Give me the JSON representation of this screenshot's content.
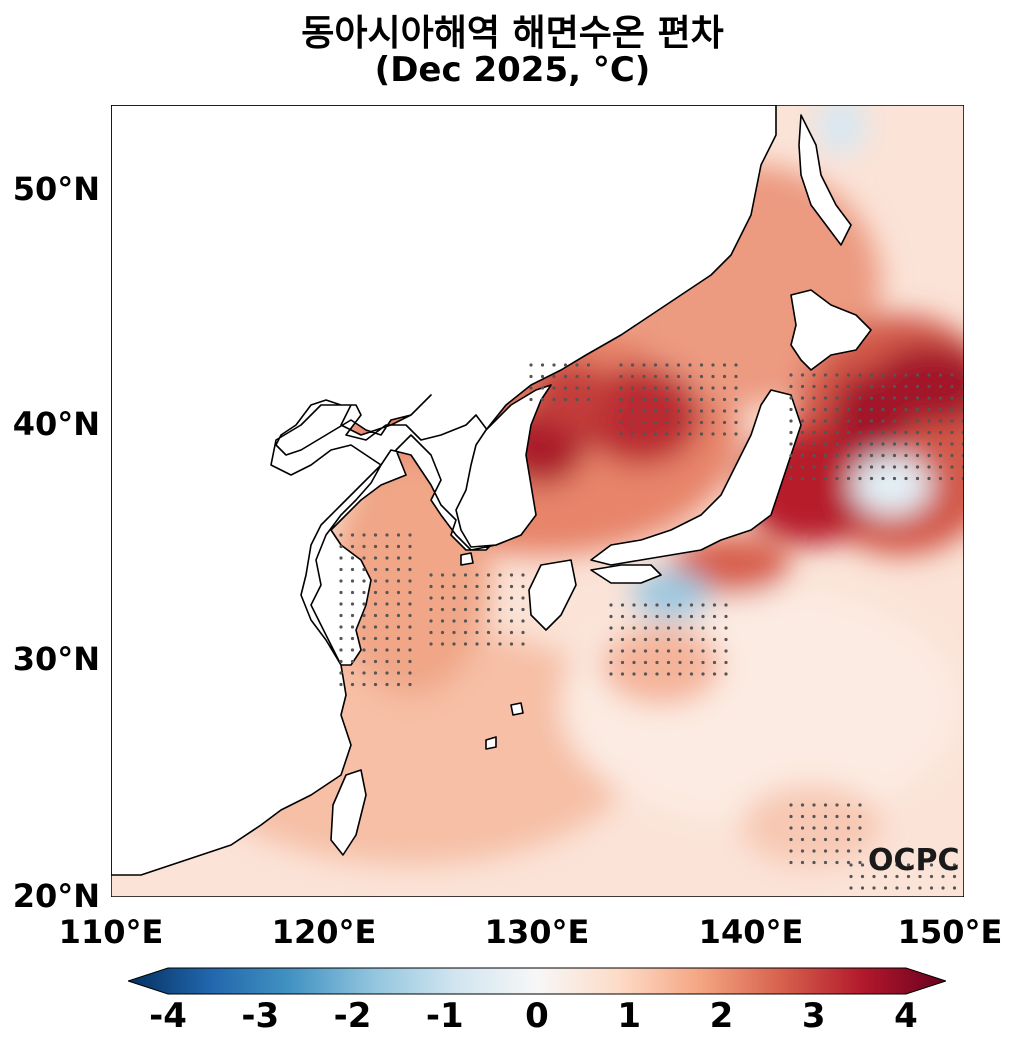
{
  "title": "동아시아해역 해면수온 편차",
  "subtitle": "(Dec 2025, °C)",
  "logo": "OCPC",
  "lat_labels": [
    "50°N",
    "40°N",
    "30°N",
    "20°N"
  ],
  "lon_labels": [
    "110°E",
    "120°E",
    "130°E",
    "140°E",
    "150°E"
  ],
  "colorbar": {
    "ticks": [
      "-4",
      "-3",
      "-2",
      "-1",
      "0",
      "1",
      "2",
      "3",
      "4"
    ],
    "min": -4,
    "max": 4,
    "colors": [
      "#053061",
      "#2166ac",
      "#4393c3",
      "#92c5de",
      "#d1e5f0",
      "#f7f7f7",
      "#fddbc7",
      "#f4a582",
      "#d6604d",
      "#b2182b",
      "#67001f"
    ]
  },
  "map": {
    "lon_range": [
      110,
      150
    ],
    "lat_range": [
      20,
      53.5
    ],
    "land_color": "#ffffff",
    "coast_color": "#000000"
  }
}
